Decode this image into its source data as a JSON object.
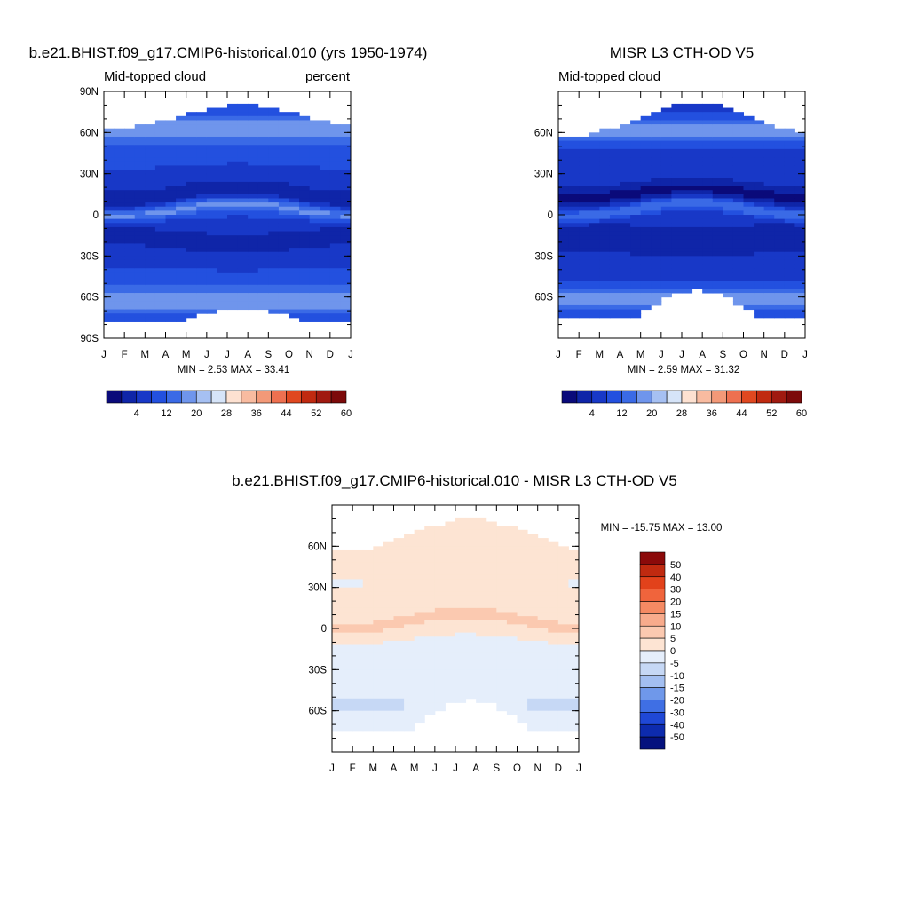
{
  "panels": {
    "model": {
      "title": "b.e21.BHIST.f09_g17.CMIP6-historical.010 (yrs 1950-1974)",
      "left_label": "Mid-topped cloud",
      "right_label": "percent",
      "stats": "MIN =   2.53 MAX =  33.41"
    },
    "obs": {
      "title": "MISR L3 CTH-OD V5",
      "left_label": "Mid-topped cloud",
      "right_label": "",
      "stats": "MIN =   2.59 MAX =  31.32"
    },
    "diff": {
      "title": "b.e21.BHIST.f09_g17.CMIP6-historical.010 - MISR L3 CTH-OD V5",
      "stats": "MIN = -15.75 MAX =  13.00"
    }
  },
  "chart_data": [
    {
      "type": "heatmap",
      "title": "b.e21.BHIST.f09_g17.CMIP6-historical.010 (yrs 1950-1974)",
      "xlabel": "",
      "ylabel": "",
      "x_ticks": [
        "J",
        "F",
        "M",
        "A",
        "M",
        "J",
        "J",
        "A",
        "S",
        "O",
        "N",
        "D",
        "J"
      ],
      "y_ticks": [
        "90N",
        "60N",
        "30N",
        "0",
        "30S",
        "60S",
        "90S"
      ],
      "y_tick_values": [
        90,
        60,
        30,
        0,
        -30,
        -60,
        -90
      ],
      "ylim": [
        -90,
        90
      ],
      "min": 2.53,
      "max": 33.41,
      "colorbar": {
        "levels": [
          4,
          8,
          12,
          16,
          20,
          24,
          28,
          32,
          36,
          40,
          44,
          48,
          52,
          56,
          60
        ],
        "labels": [
          "4",
          "12",
          "20",
          "28",
          "36",
          "44",
          "52",
          "60"
        ],
        "colors": [
          "#0a0a7a",
          "#0f25a8",
          "#1838c7",
          "#2350df",
          "#3a6ae6",
          "#6f95ec",
          "#a6c0f2",
          "#d6e4f8",
          "#fde1d1",
          "#f8bba0",
          "#f39978",
          "#ee7050",
          "#e04820",
          "#c02a10",
          "#a01a10",
          "#7c0a0a"
        ]
      }
    },
    {
      "type": "heatmap",
      "title": "MISR L3 CTH-OD V5",
      "xlabel": "",
      "ylabel": "",
      "x_ticks": [
        "J",
        "F",
        "M",
        "A",
        "M",
        "J",
        "J",
        "A",
        "S",
        "O",
        "N",
        "D",
        "J"
      ],
      "y_ticks": [
        "60N",
        "30N",
        "0",
        "30S",
        "60S"
      ],
      "y_tick_values": [
        60,
        30,
        0,
        -30,
        -60
      ],
      "ylim": [
        -90,
        90
      ],
      "min": 2.59,
      "max": 31.32,
      "colorbar": {
        "levels": [
          4,
          8,
          12,
          16,
          20,
          24,
          28,
          32,
          36,
          40,
          44,
          48,
          52,
          56,
          60
        ],
        "labels": [
          "4",
          "12",
          "20",
          "28",
          "36",
          "44",
          "52",
          "60"
        ],
        "colors": [
          "#0a0a7a",
          "#0f25a8",
          "#1838c7",
          "#2350df",
          "#3a6ae6",
          "#6f95ec",
          "#a6c0f2",
          "#d6e4f8",
          "#fde1d1",
          "#f8bba0",
          "#f39978",
          "#ee7050",
          "#e04820",
          "#c02a10",
          "#a01a10",
          "#7c0a0a"
        ]
      }
    },
    {
      "type": "heatmap",
      "title": "b.e21.BHIST.f09_g17.CMIP6-historical.010 - MISR L3 CTH-OD V5",
      "xlabel": "",
      "ylabel": "",
      "x_ticks": [
        "J",
        "F",
        "M",
        "A",
        "M",
        "J",
        "J",
        "A",
        "S",
        "O",
        "N",
        "D",
        "J"
      ],
      "y_ticks": [
        "60N",
        "30N",
        "0",
        "30S",
        "60S"
      ],
      "y_tick_values": [
        60,
        30,
        0,
        -30,
        -60
      ],
      "ylim": [
        -90,
        90
      ],
      "min": -15.75,
      "max": 13.0,
      "colorbar": {
        "labels": [
          "50",
          "40",
          "30",
          "20",
          "15",
          "10",
          "5",
          "0",
          "-5",
          "-10",
          "-15",
          "-20",
          "-30",
          "-40",
          "-50"
        ],
        "colors": [
          "#8b0a0a",
          "#c02a10",
          "#e2421b",
          "#f0643c",
          "#f58a63",
          "#f8ab8c",
          "#fbc9b0",
          "#fde4d3",
          "#e5eefb",
          "#c6d8f5",
          "#a3bff1",
          "#6f98ea",
          "#3f6fe4",
          "#1f48d6",
          "#0d2bae",
          "#05127e"
        ]
      }
    }
  ]
}
